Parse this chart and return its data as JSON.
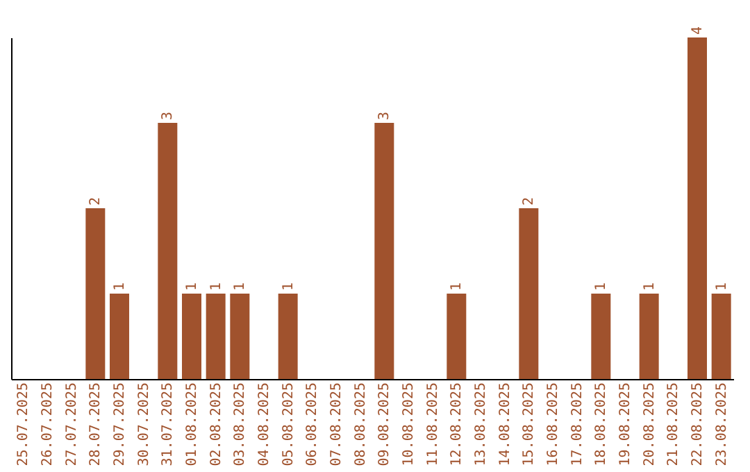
{
  "chart_data": {
    "type": "bar",
    "categories": [
      "25.07.2025",
      "26.07.2025",
      "27.07.2025",
      "28.07.2025",
      "29.07.2025",
      "30.07.2025",
      "31.07.2025",
      "01.08.2025",
      "02.08.2025",
      "03.08.2025",
      "04.08.2025",
      "05.08.2025",
      "06.08.2025",
      "07.08.2025",
      "08.08.2025",
      "09.08.2025",
      "10.08.2025",
      "11.08.2025",
      "12.08.2025",
      "13.08.2025",
      "14.08.2025",
      "15.08.2025",
      "16.08.2025",
      "17.08.2025",
      "18.08.2025",
      "19.08.2025",
      "20.08.2025",
      "21.08.2025",
      "22.08.2025",
      "23.08.2025"
    ],
    "values": [
      0,
      0,
      0,
      2,
      1,
      0,
      3,
      1,
      1,
      1,
      0,
      1,
      0,
      0,
      0,
      3,
      0,
      0,
      1,
      0,
      0,
      2,
      0,
      0,
      1,
      0,
      1,
      0,
      4,
      1
    ],
    "value_labels": [
      null,
      null,
      null,
      "2",
      "1",
      null,
      "3",
      "1",
      "1",
      "1",
      null,
      "1",
      null,
      null,
      null,
      "3",
      null,
      null,
      "1",
      null,
      null,
      "2",
      null,
      null,
      "1",
      null,
      "1",
      null,
      "4",
      "1"
    ],
    "color": "#a0522d",
    "grid": false
  }
}
